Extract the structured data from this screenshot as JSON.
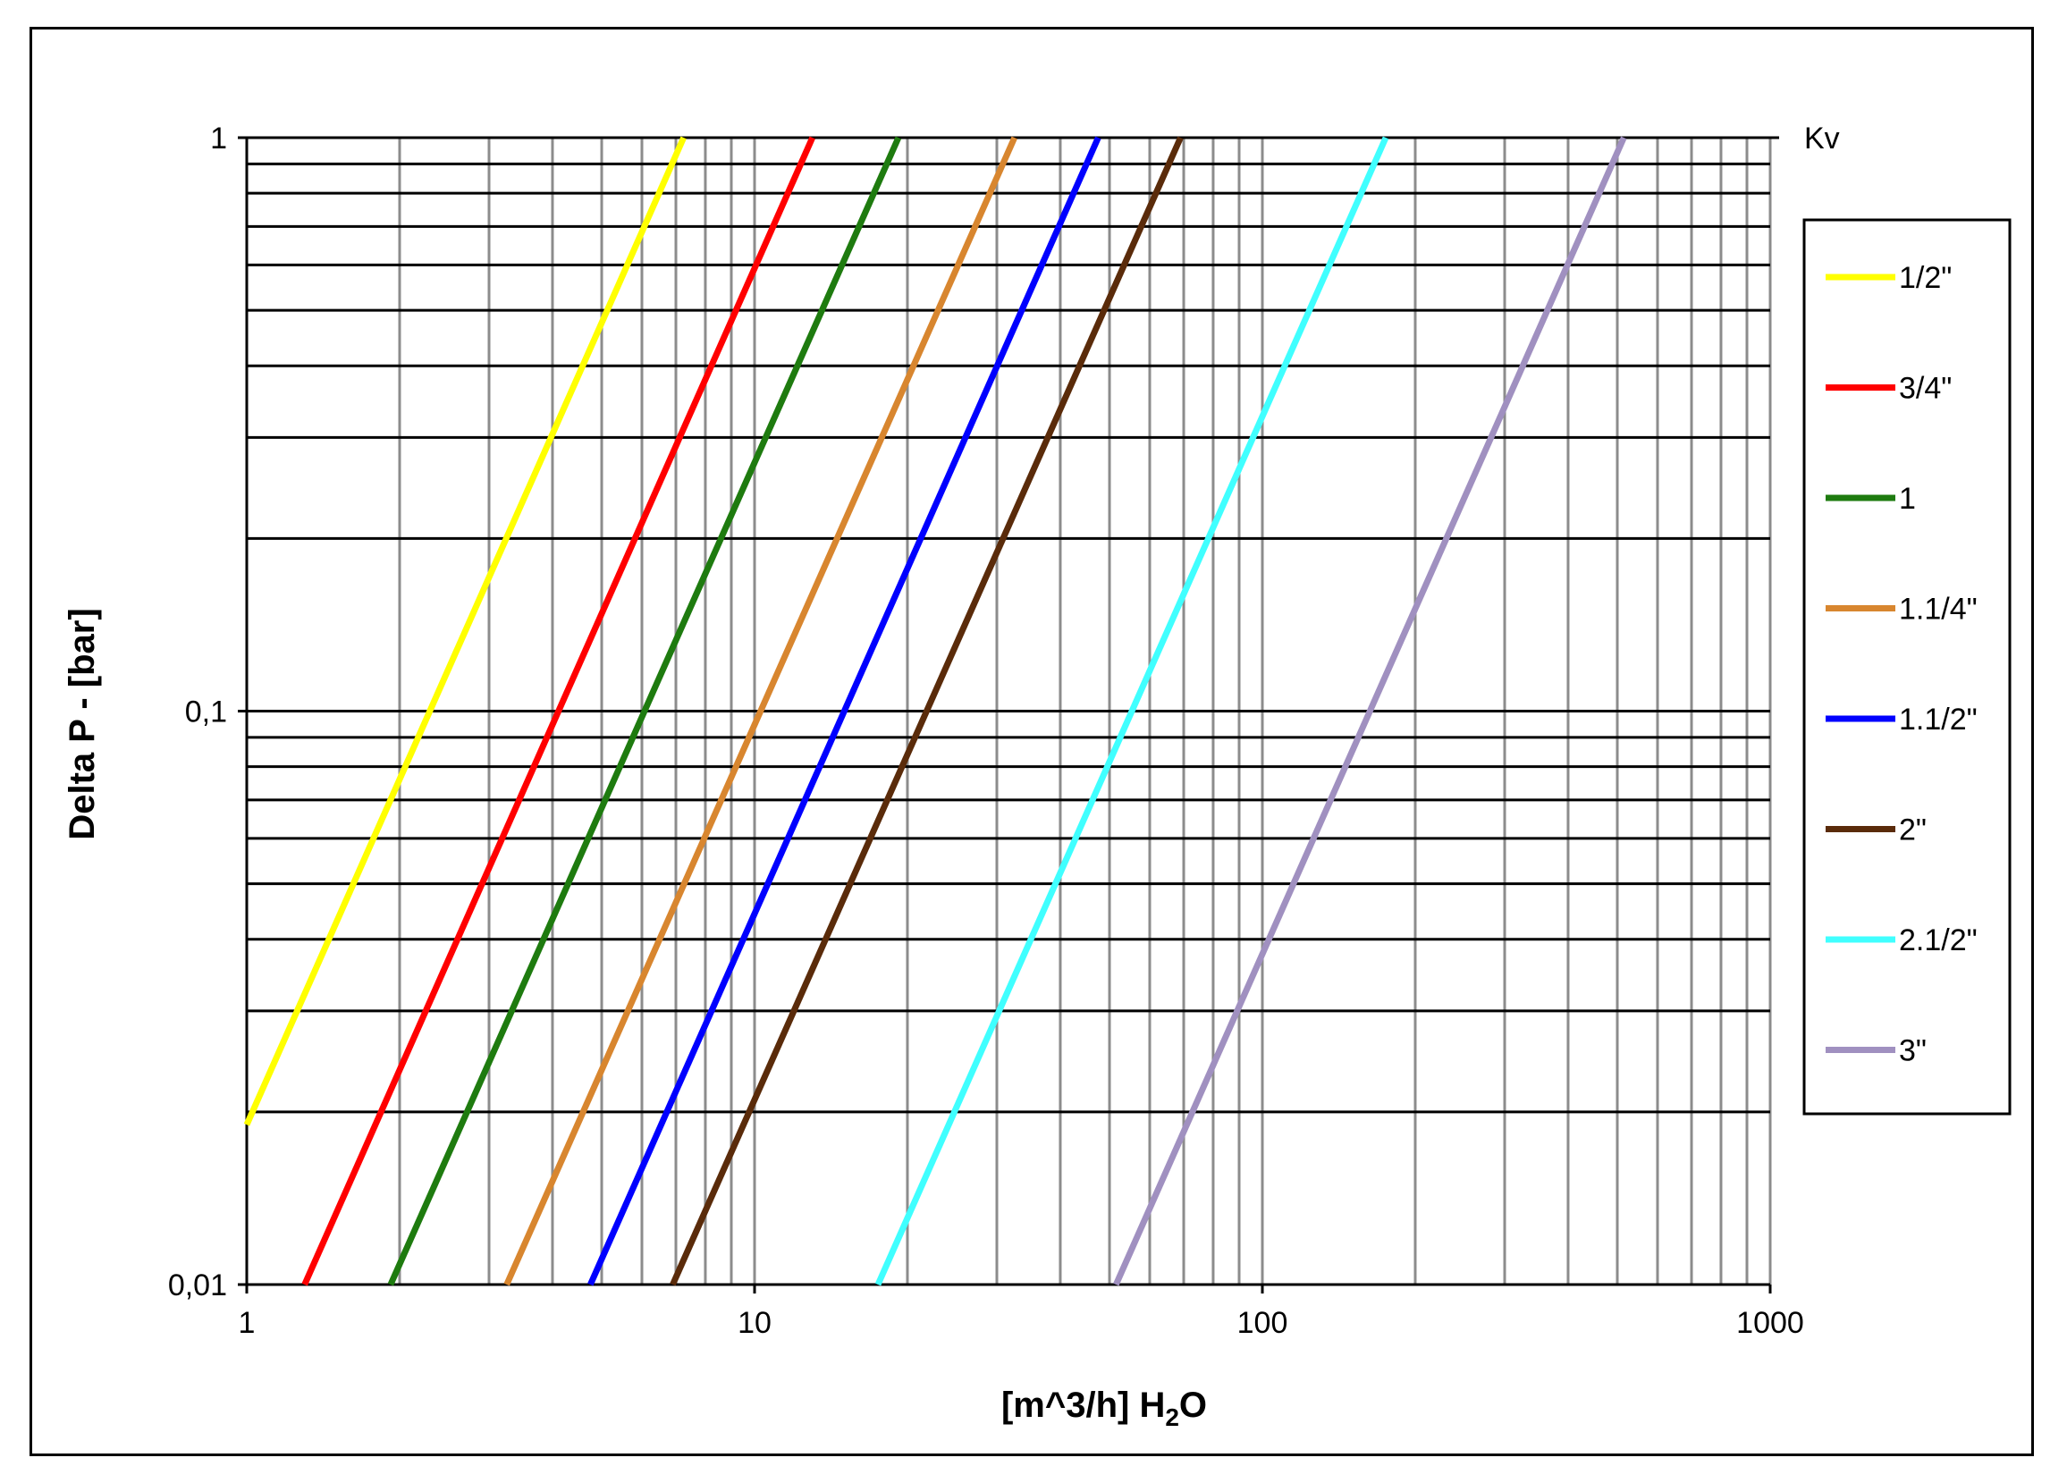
{
  "chart_data": {
    "type": "line",
    "title": "",
    "xlabel": "[m^3/h] H",
    "xlabel_sub": "2",
    "xlabel_tail": "O",
    "ylabel": "Delta P - [bar]",
    "x_scale": "log",
    "y_scale": "log",
    "xlim": [
      1,
      1000
    ],
    "ylim": [
      0.01,
      1
    ],
    "x_ticks": [
      {
        "value": 1,
        "label": "1"
      },
      {
        "value": 10,
        "label": "10"
      },
      {
        "value": 100,
        "label": "100"
      },
      {
        "value": 1000,
        "label": "1000"
      }
    ],
    "y_ticks": [
      {
        "value": 0.01,
        "label": "0,01"
      },
      {
        "value": 0.1,
        "label": "0,1"
      },
      {
        "value": 1,
        "label": "1"
      }
    ],
    "grid": true,
    "legend_title": "Kv",
    "legend_position": "right",
    "series": [
      {
        "name": "1/2\"",
        "color": "#ffff00",
        "x": [
          1,
          7.25
        ],
        "y": [
          0.019,
          1
        ]
      },
      {
        "name": "3/4\"",
        "color": "#ff0000",
        "x": [
          1.3,
          13
        ],
        "y": [
          0.01,
          1
        ]
      },
      {
        "name": "1",
        "color": "#1e7b0f",
        "x": [
          1.92,
          19.2
        ],
        "y": [
          0.01,
          1
        ]
      },
      {
        "name": "1.1/4\"",
        "color": "#d8862f",
        "x": [
          3.25,
          32.5
        ],
        "y": [
          0.01,
          1
        ]
      },
      {
        "name": "1.1/2\"",
        "color": "#0000ff",
        "x": [
          4.75,
          47.5
        ],
        "y": [
          0.01,
          1
        ]
      },
      {
        "name": "2\"",
        "color": "#5a2b0a",
        "x": [
          6.9,
          69
        ],
        "y": [
          0.01,
          1
        ]
      },
      {
        "name": "2.1/2\"",
        "color": "#40ffff",
        "x": [
          17.5,
          175
        ],
        "y": [
          0.01,
          1
        ]
      },
      {
        "name": "3\"",
        "color": "#a090c0",
        "x": [
          51.5,
          515
        ],
        "y": [
          0.01,
          1
        ]
      }
    ]
  }
}
